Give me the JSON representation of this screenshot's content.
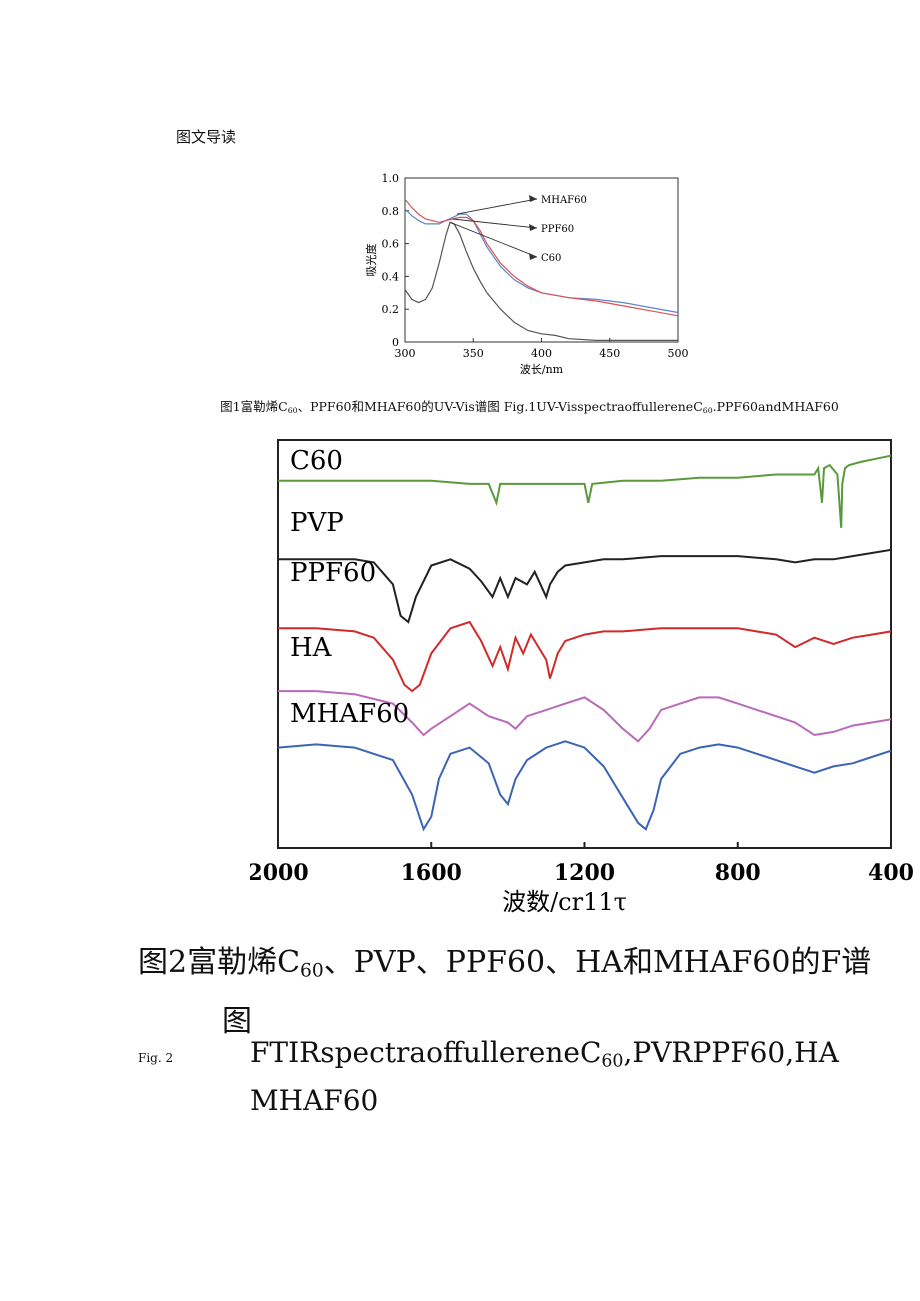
{
  "page": {
    "section_heading": "图文导读"
  },
  "figure1": {
    "caption": "图1富勒烯C60、PPF60和MHAF60的UV-Vis谱图 Fig.1UV-VisspectraoffullereneC60.PPF60andMHAF60",
    "caption_parts": {
      "a": "图1富勒烯C",
      "a_sub": "60",
      "b": "、PPF60和MHAF60的UV-Vis谱图 Fig.1UV-VisspectraoffullereneC",
      "b_sub": "60",
      "c": ".PPF60andMHAF60"
    },
    "chart_data": {
      "type": "line",
      "title": "",
      "xlabel": "波长/nm",
      "ylabel": "吸光度",
      "xlim": [
        300,
        500
      ],
      "ylim": [
        0,
        1.0
      ],
      "x_ticks": [
        "300",
        "350",
        "400",
        "450",
        "500"
      ],
      "y_ticks": [
        "0",
        "0.2",
        "0.4",
        "0.6",
        "0.8",
        "1.0"
      ],
      "grid": false,
      "legend": "annotations with arrows, top-right",
      "series": [
        {
          "name": "MHAF60",
          "color": "#5b86c0",
          "x": [
            300,
            305,
            310,
            315,
            320,
            325,
            330,
            335,
            340,
            345,
            350,
            355,
            360,
            370,
            380,
            390,
            400,
            420,
            440,
            460,
            480,
            500
          ],
          "y": [
            0.81,
            0.77,
            0.74,
            0.72,
            0.72,
            0.72,
            0.74,
            0.76,
            0.78,
            0.78,
            0.74,
            0.66,
            0.58,
            0.46,
            0.38,
            0.33,
            0.3,
            0.27,
            0.26,
            0.24,
            0.21,
            0.18
          ]
        },
        {
          "name": "PPF60",
          "color": "#d9525a",
          "x": [
            300,
            305,
            310,
            315,
            320,
            325,
            330,
            335,
            340,
            345,
            350,
            355,
            360,
            370,
            380,
            390,
            400,
            420,
            440,
            460,
            480,
            500
          ],
          "y": [
            0.87,
            0.82,
            0.78,
            0.75,
            0.74,
            0.73,
            0.74,
            0.75,
            0.76,
            0.76,
            0.74,
            0.68,
            0.6,
            0.48,
            0.4,
            0.34,
            0.3,
            0.27,
            0.25,
            0.22,
            0.19,
            0.16
          ]
        },
        {
          "name": "C60",
          "color": "#555555",
          "x": [
            300,
            305,
            310,
            315,
            320,
            325,
            330,
            333,
            336,
            340,
            345,
            350,
            355,
            360,
            370,
            380,
            390,
            400,
            410,
            420,
            440,
            460,
            480,
            500
          ],
          "y": [
            0.32,
            0.26,
            0.24,
            0.26,
            0.33,
            0.48,
            0.65,
            0.73,
            0.72,
            0.66,
            0.55,
            0.45,
            0.37,
            0.3,
            0.2,
            0.12,
            0.07,
            0.05,
            0.04,
            0.02,
            0.01,
            0.01,
            0.01,
            0.01
          ]
        }
      ],
      "annotations": [
        {
          "label": "MHAF60",
          "target_x": 338,
          "target_y": 0.78
        },
        {
          "label": "PPF60",
          "target_x": 335,
          "target_y": 0.75
        },
        {
          "label": "C60",
          "target_x": 333,
          "target_y": 0.73
        }
      ]
    }
  },
  "figure2": {
    "caption_cn_line1_a": "图2富勒烯C",
    "caption_cn_line1_sub": "60",
    "caption_cn_line1_b": "、PVP、PPF60、HA和MHAF60的F谱",
    "caption_cn_line2": "图",
    "label_en": "Fig. 2",
    "caption_en_line1_a": "FTIRspectraoffullereneC",
    "caption_en_line1_sub": "60",
    "caption_en_line1_b": ",PVRPPF60,HA",
    "caption_en_line2": "MHAF60",
    "chart_data": {
      "type": "line",
      "title": "",
      "xlabel": "波数/cr11τ",
      "xlim": [
        2000,
        400
      ],
      "x_ticks": [
        "2000",
        "1600",
        "1200",
        "800",
        "400"
      ],
      "y_axis": "stacked transmittance, unlabeled",
      "grid": false,
      "legend": "series labels above each trace, left",
      "series": [
        {
          "name": "C60",
          "color": "#5a9a3c",
          "x": [
            2000,
            1900,
            1800,
            1700,
            1600,
            1500,
            1450,
            1430,
            1420,
            1400,
            1300,
            1200,
            1190,
            1180,
            1100,
            1000,
            900,
            800,
            700,
            600,
            590,
            580,
            575,
            560,
            540,
            530,
            527,
            520,
            510,
            480,
            440,
            400
          ],
          "y": [
            0.95,
            0.95,
            0.95,
            0.95,
            0.95,
            0.94,
            0.94,
            0.88,
            0.94,
            0.94,
            0.94,
            0.94,
            0.88,
            0.94,
            0.95,
            0.95,
            0.96,
            0.96,
            0.97,
            0.97,
            0.99,
            0.88,
            0.99,
            1.0,
            0.97,
            0.8,
            0.94,
            0.99,
            1.0,
            1.01,
            1.02,
            1.03
          ]
        },
        {
          "name": "PVP",
          "color": "#222222",
          "x": [
            2000,
            1900,
            1800,
            1750,
            1700,
            1680,
            1660,
            1640,
            1600,
            1550,
            1500,
            1470,
            1440,
            1420,
            1400,
            1380,
            1350,
            1330,
            1300,
            1290,
            1270,
            1250,
            1200,
            1150,
            1100,
            1000,
            900,
            800,
            700,
            650,
            600,
            550,
            500,
            450,
            400
          ],
          "y": [
            0.7,
            0.7,
            0.7,
            0.69,
            0.62,
            0.52,
            0.5,
            0.58,
            0.68,
            0.7,
            0.67,
            0.63,
            0.58,
            0.64,
            0.58,
            0.64,
            0.62,
            0.66,
            0.58,
            0.62,
            0.66,
            0.68,
            0.69,
            0.7,
            0.7,
            0.71,
            0.71,
            0.71,
            0.7,
            0.69,
            0.7,
            0.7,
            0.71,
            0.72,
            0.73
          ]
        },
        {
          "name": "PPF60",
          "color": "#d02a2a",
          "x": [
            2000,
            1900,
            1800,
            1750,
            1700,
            1670,
            1650,
            1630,
            1600,
            1550,
            1500,
            1470,
            1440,
            1420,
            1400,
            1380,
            1360,
            1340,
            1320,
            1300,
            1290,
            1280,
            1270,
            1250,
            1200,
            1150,
            1100,
            1000,
            900,
            800,
            700,
            650,
            600,
            550,
            500,
            450,
            400
          ],
          "y": [
            0.48,
            0.48,
            0.47,
            0.45,
            0.38,
            0.3,
            0.28,
            0.3,
            0.4,
            0.48,
            0.5,
            0.44,
            0.36,
            0.42,
            0.35,
            0.45,
            0.4,
            0.46,
            0.42,
            0.38,
            0.32,
            0.36,
            0.4,
            0.44,
            0.46,
            0.47,
            0.47,
            0.48,
            0.48,
            0.48,
            0.46,
            0.42,
            0.45,
            0.43,
            0.45,
            0.46,
            0.47
          ]
        },
        {
          "name": "HA",
          "color": "#b86bb8",
          "x": [
            2000,
            1900,
            1800,
            1700,
            1650,
            1620,
            1600,
            1550,
            1500,
            1450,
            1400,
            1380,
            1350,
            1300,
            1250,
            1200,
            1150,
            1100,
            1060,
            1030,
            1000,
            950,
            900,
            850,
            800,
            750,
            700,
            650,
            600,
            550,
            500,
            450,
            400
          ],
          "y": [
            0.28,
            0.28,
            0.27,
            0.24,
            0.18,
            0.14,
            0.16,
            0.2,
            0.24,
            0.2,
            0.18,
            0.16,
            0.2,
            0.22,
            0.24,
            0.26,
            0.22,
            0.16,
            0.12,
            0.16,
            0.22,
            0.24,
            0.26,
            0.26,
            0.24,
            0.22,
            0.2,
            0.18,
            0.14,
            0.15,
            0.17,
            0.18,
            0.19
          ]
        },
        {
          "name": "MHAF60",
          "color": "#3c64b4",
          "x": [
            2000,
            1900,
            1800,
            1700,
            1650,
            1620,
            1600,
            1580,
            1550,
            1500,
            1450,
            1420,
            1400,
            1380,
            1350,
            1300,
            1250,
            1200,
            1150,
            1100,
            1060,
            1040,
            1020,
            1000,
            950,
            900,
            850,
            800,
            750,
            700,
            650,
            600,
            550,
            500,
            450,
            400
          ],
          "y": [
            0.1,
            0.11,
            0.1,
            0.06,
            -0.05,
            -0.16,
            -0.12,
            0.0,
            0.08,
            0.1,
            0.05,
            -0.05,
            -0.08,
            0.0,
            0.06,
            0.1,
            0.12,
            0.1,
            0.04,
            -0.06,
            -0.14,
            -0.16,
            -0.1,
            0.0,
            0.08,
            0.1,
            0.11,
            0.1,
            0.08,
            0.06,
            0.04,
            0.02,
            0.04,
            0.05,
            0.07,
            0.09
          ]
        }
      ]
    }
  }
}
